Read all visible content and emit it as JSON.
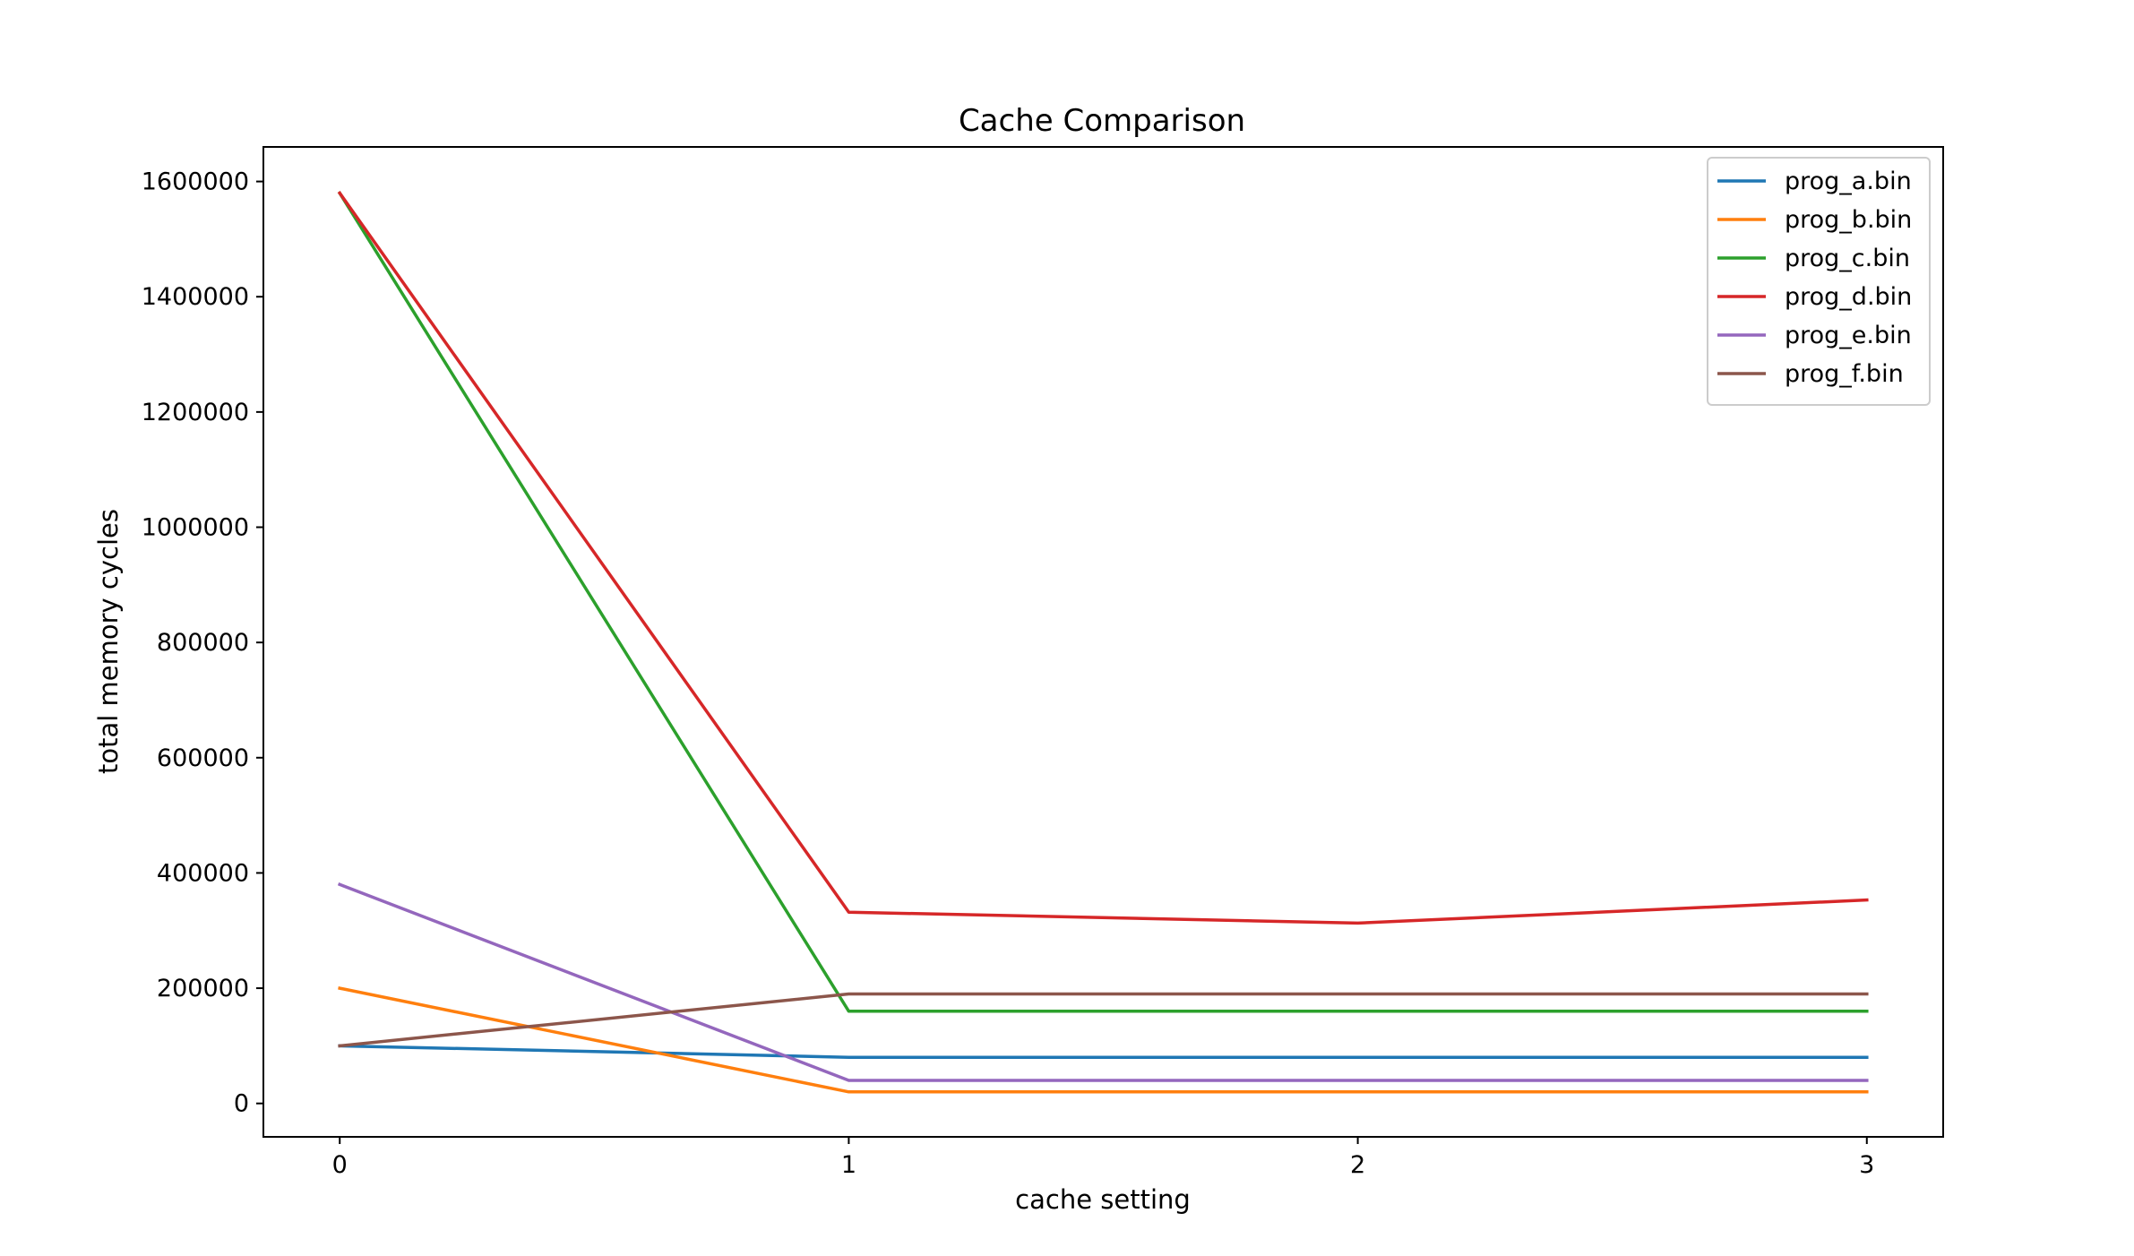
{
  "chart_data": {
    "type": "line",
    "title": "Cache Comparison",
    "xlabel": "cache setting",
    "ylabel": "total memory cycles",
    "x": [
      0,
      1,
      2,
      3
    ],
    "xticks": [
      "0",
      "1",
      "2",
      "3"
    ],
    "yticks": [
      "0",
      "200000",
      "400000",
      "600000",
      "800000",
      "1000000",
      "1200000",
      "1400000",
      "1600000"
    ],
    "ytick_values": [
      0,
      200000,
      400000,
      600000,
      800000,
      1000000,
      1200000,
      1400000,
      1600000
    ],
    "xlim": [
      -0.15,
      3.15
    ],
    "ylim": [
      -58000,
      1660000
    ],
    "grid": false,
    "legend_position": "top-right",
    "series": [
      {
        "name": "prog_a.bin",
        "color": "#1f77b4",
        "values": [
          100000,
          80000,
          80000,
          80000
        ]
      },
      {
        "name": "prog_b.bin",
        "color": "#ff7f0e",
        "values": [
          200000,
          20000,
          20000,
          20000
        ]
      },
      {
        "name": "prog_c.bin",
        "color": "#2ca02c",
        "values": [
          1580000,
          160000,
          160000,
          160000
        ]
      },
      {
        "name": "prog_d.bin",
        "color": "#d62728",
        "values": [
          1580000,
          332000,
          313000,
          353000
        ]
      },
      {
        "name": "prog_e.bin",
        "color": "#9467bd",
        "values": [
          380000,
          40000,
          40000,
          40000
        ]
      },
      {
        "name": "prog_f.bin",
        "color": "#8c564b",
        "values": [
          100000,
          190000,
          190000,
          190000
        ]
      }
    ]
  }
}
